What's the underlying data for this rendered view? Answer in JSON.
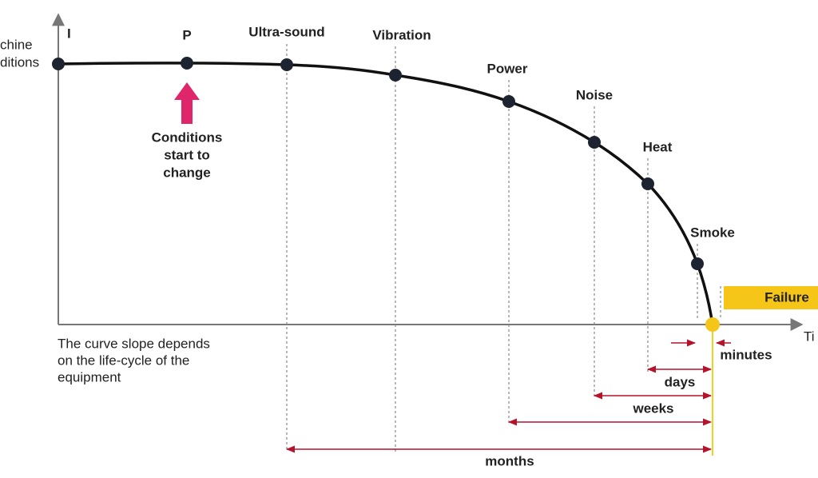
{
  "axis": {
    "y_label": [
      "chine",
      "ditions"
    ],
    "x_label": "Ti"
  },
  "nodes": [
    {
      "label": "I"
    },
    {
      "label": "P"
    },
    {
      "label": "Ultra-sound"
    },
    {
      "label": "Vibration"
    },
    {
      "label": "Power"
    },
    {
      "label": "Noise"
    },
    {
      "label": "Heat"
    },
    {
      "label": "Smoke"
    }
  ],
  "annotation": [
    "Conditions",
    "start to",
    "change"
  ],
  "note": [
    "The curve slope depends",
    "on the life-cycle of the",
    "equipment"
  ],
  "failure": "Failure",
  "intervals": [
    "minutes",
    "days",
    "weeks",
    "months"
  ]
}
